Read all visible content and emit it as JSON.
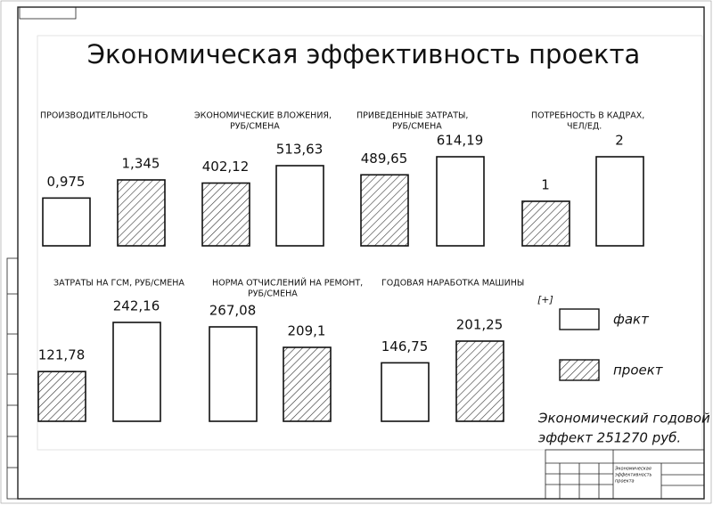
{
  "title": "Экономическая эффективность проекта",
  "legend": [
    {
      "name": "факт",
      "fill": "white"
    },
    {
      "name": "проект",
      "fill": "hatch"
    }
  ],
  "note": [
    "Экономический годовой",
    "эффект 251270 руб."
  ],
  "title_block": {
    "name": [
      "Экономическая",
      "эффективность",
      "проекта"
    ]
  },
  "chart_data": [
    {
      "type": "bar",
      "title": [
        "ПРОИЗВОДИТЕЛЬНОСТЬ"
      ],
      "values": [
        0.975,
        1.345
      ],
      "value_labels": [
        "0,975",
        "1,345"
      ],
      "fills": [
        "white",
        "hatch"
      ]
    },
    {
      "type": "bar",
      "title": [
        "ЭКОНОМИЧЕСКИЕ ВЛОЖЕНИЯ,",
        "РУБ/СМЕНА"
      ],
      "values": [
        402.12,
        513.63
      ],
      "value_labels": [
        "402,12",
        "513,63"
      ],
      "fills": [
        "hatch",
        "white"
      ]
    },
    {
      "type": "bar",
      "title": [
        "ПРИВЕДЕННЫЕ ЗАТРАТЫ,",
        "РУБ/СМЕНА"
      ],
      "values": [
        489.65,
        614.19
      ],
      "value_labels": [
        "489,65",
        "614,19"
      ],
      "fills": [
        "hatch",
        "white"
      ]
    },
    {
      "type": "bar",
      "title": [
        "ПОТРЕБНОСТЬ В КАДРАХ,",
        "ЧЕЛ/ЕД."
      ],
      "values": [
        1,
        2
      ],
      "fills": [
        "hatch",
        "white"
      ]
    },
    {
      "type": "bar",
      "title": [
        "ЗАТРАТЫ НА ГСМ, РУБ/СМЕНА"
      ],
      "values": [
        121.78,
        242.16
      ],
      "value_labels": [
        "121,78",
        "242,16"
      ],
      "fills": [
        "hatch",
        "white"
      ]
    },
    {
      "type": "bar",
      "title": [
        "НОРМА ОТЧИСЛЕНИЙ НА РЕМОНТ,",
        "РУБ/СМЕНА"
      ],
      "values": [
        267.08,
        209.1
      ],
      "value_labels": [
        "267,08",
        "209,1"
      ],
      "fills": [
        "white",
        "hatch"
      ]
    },
    {
      "type": "bar",
      "title": [
        "ГОДОВАЯ НАРАБОТКА МАШИНЫ"
      ],
      "values": [
        146.75,
        201.25
      ],
      "value_labels": [
        "146,75",
        "201,25"
      ],
      "fills": [
        "white",
        "hatch"
      ]
    }
  ]
}
